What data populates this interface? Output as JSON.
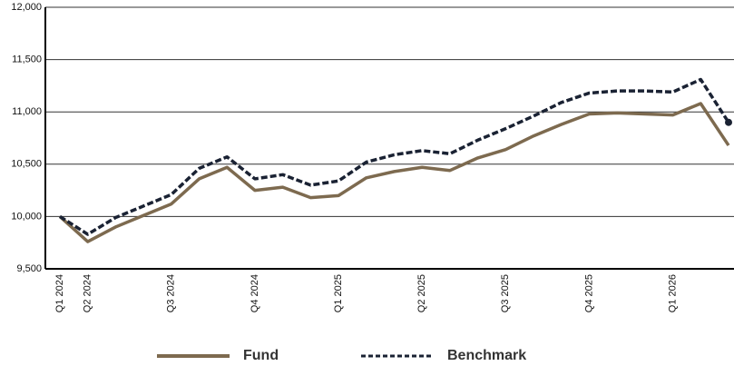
{
  "chart_data": {
    "type": "line",
    "categories": [
      "Q1 2024",
      "Q2 2024",
      null,
      null,
      "Q3 2024",
      null,
      null,
      "Q4 2024",
      null,
      null,
      "Q1 2025",
      null,
      null,
      "Q2 2025",
      null,
      null,
      "Q3 2025",
      null,
      null,
      "Q4 2025",
      null,
      null,
      "Q1 2026",
      null,
      null
    ],
    "series": [
      {
        "name": "Fund",
        "color": "#7d6a4f",
        "dashed": false,
        "values": [
          10000,
          9760,
          9900,
          10010,
          10120,
          10360,
          10470,
          10250,
          10280,
          10180,
          10200,
          10370,
          10430,
          10470,
          10440,
          10560,
          10640,
          10770,
          10880,
          10980,
          10990,
          10980,
          10970,
          11080,
          10680
        ]
      },
      {
        "name": "Benchmark",
        "color": "#1a2233",
        "dashed": true,
        "end_marker": true,
        "values": [
          10000,
          9830,
          9990,
          10100,
          10210,
          10460,
          10570,
          10360,
          10400,
          10300,
          10340,
          10520,
          10590,
          10630,
          10600,
          10730,
          10840,
          10960,
          11090,
          11180,
          11200,
          11200,
          11190,
          11310,
          10900
        ]
      }
    ],
    "ylim": [
      9500,
      12000
    ],
    "yticks": [
      {
        "value": 9500,
        "label": "9,500"
      },
      {
        "value": 10000,
        "label": "10,000"
      },
      {
        "value": 10500,
        "label": "10,500"
      },
      {
        "value": 11000,
        "label": "11,000"
      },
      {
        "value": 11500,
        "label": "11,500"
      },
      {
        "value": 12000,
        "label": "12,000"
      }
    ],
    "grid": true,
    "legend": "bottom"
  }
}
